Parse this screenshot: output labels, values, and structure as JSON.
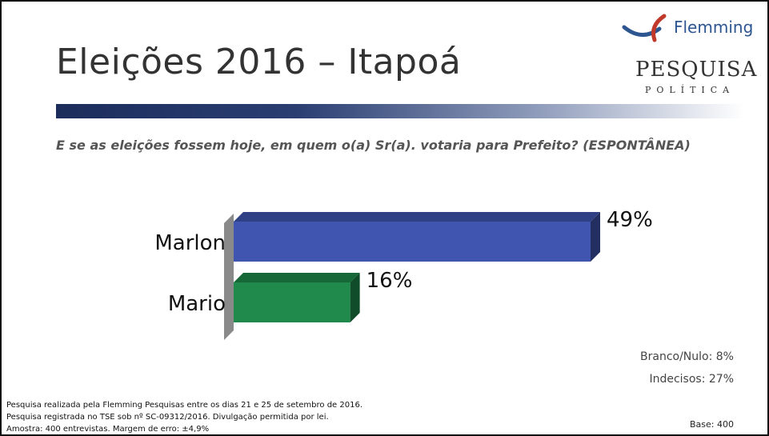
{
  "header": {
    "title": "Eleições 2016 – Itapoá",
    "question": "E se as eleições fossem hoje, em quem o(a) Sr(a). votaria para Prefeito? (ESPONTÂNEA)"
  },
  "logo": {
    "brand": "Flemming",
    "line1": "PESQUISA",
    "line2": "POLÍTICA",
    "colors": {
      "blue": "#2d5590",
      "red": "#c0392b"
    }
  },
  "chart_data": {
    "type": "bar",
    "orientation": "horizontal",
    "categories": [
      "Marlon",
      "Mario"
    ],
    "values": [
      49,
      16
    ],
    "value_labels": [
      "49%",
      "16%"
    ],
    "colors": [
      "#3f55b0",
      "#1f8a4c"
    ],
    "xlim": [
      0,
      50
    ],
    "grid": false,
    "legend": "none",
    "style": "3d"
  },
  "notes": {
    "branco_nulo": "Branco/Nulo: 8%",
    "indecisos": "Indecisos: 27%",
    "base": "Base: 400"
  },
  "footer": {
    "line1": "Pesquisa realizada pela Flemming Pesquisas entre os dias 21 e 25 de setembro de 2016.",
    "line2": "Pesquisa registrada no TSE sob nº SC-09312/2016.  Divulgação permitida por lei.",
    "line3": "Amostra: 400 entrevistas. Margem de erro: ±4,9%"
  }
}
